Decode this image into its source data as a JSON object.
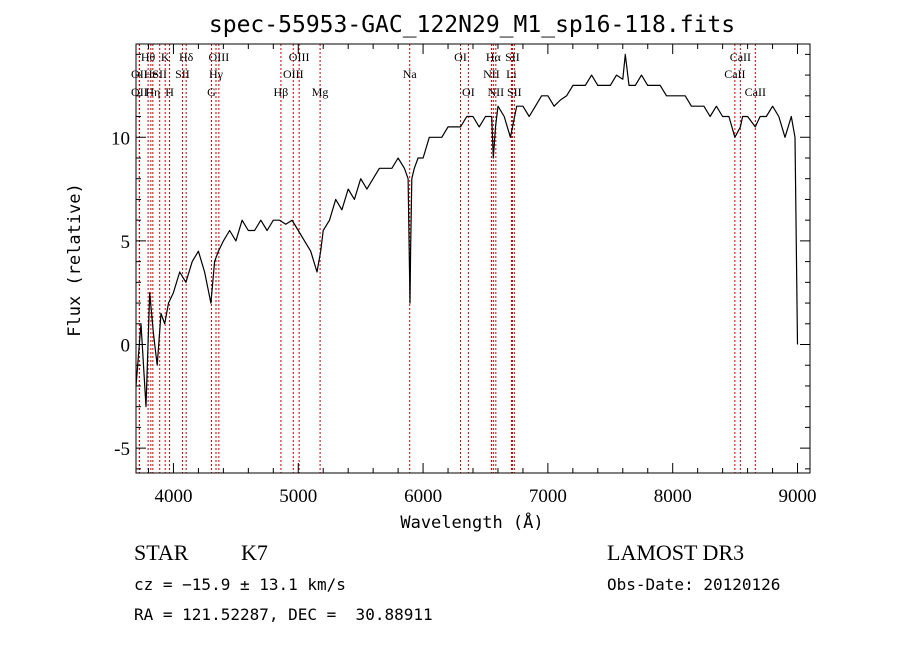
{
  "chart_data": {
    "type": "line",
    "title": "spec-55953-GAC_122N29_M1_sp16-118.fits",
    "xlabel": "Wavelength (Å)",
    "ylabel": "Flux (relative)",
    "xlim": [
      3700,
      9100
    ],
    "ylim": [
      -6.2,
      14.5
    ],
    "xticks": [
      4000,
      5000,
      6000,
      7000,
      8000,
      9000
    ],
    "yticks": [
      -5,
      0,
      5,
      10
    ],
    "grid": false,
    "series": [
      {
        "x": [
          3700,
          3740,
          3780,
          3810,
          3840,
          3870,
          3900,
          3930,
          3960,
          4000,
          4050,
          4100,
          4150,
          4200,
          4250,
          4300,
          4330,
          4360,
          4400,
          4450,
          4500,
          4550,
          4600,
          4650,
          4700,
          4750,
          4800,
          4850,
          4900,
          4950,
          5000,
          5050,
          5100,
          5150,
          5180,
          5200,
          5250,
          5300,
          5350,
          5400,
          5450,
          5500,
          5550,
          5600,
          5650,
          5700,
          5750,
          5800,
          5850,
          5880,
          5895,
          5900,
          5910,
          5930,
          5960,
          6000,
          6050,
          6100,
          6150,
          6200,
          6250,
          6300,
          6350,
          6400,
          6450,
          6500,
          6550,
          6563,
          6580,
          6600,
          6650,
          6700,
          6750,
          6800,
          6850,
          6900,
          6950,
          7000,
          7050,
          7100,
          7150,
          7200,
          7250,
          7300,
          7350,
          7400,
          7450,
          7500,
          7550,
          7600,
          7620,
          7650,
          7700,
          7750,
          7800,
          7850,
          7900,
          7950,
          8000,
          8050,
          8100,
          8150,
          8200,
          8250,
          8300,
          8350,
          8400,
          8450,
          8498,
          8542,
          8560,
          8600,
          8662,
          8700,
          8750,
          8800,
          8850,
          8900,
          8950,
          8980,
          9000
        ],
        "y": [
          -2.0,
          1.0,
          -3.0,
          2.5,
          0.5,
          -1.0,
          1.5,
          1.0,
          2.0,
          2.5,
          3.5,
          3.0,
          4.0,
          4.5,
          3.5,
          2.0,
          4.0,
          4.5,
          5.0,
          5.5,
          5.0,
          6.0,
          5.5,
          5.5,
          6.0,
          5.5,
          6.0,
          6.0,
          5.8,
          6.0,
          5.5,
          5.0,
          4.5,
          3.5,
          4.5,
          5.5,
          6.0,
          7.0,
          6.5,
          7.5,
          7.0,
          8.0,
          7.5,
          8.0,
          8.5,
          8.5,
          8.5,
          9.0,
          8.5,
          8.0,
          2.0,
          4.5,
          8.0,
          8.5,
          9.0,
          9.0,
          10.0,
          10.0,
          10.0,
          10.5,
          10.5,
          10.5,
          11.0,
          11.0,
          10.5,
          11.0,
          11.0,
          9.0,
          10.5,
          11.5,
          11.0,
          10.0,
          11.5,
          11.5,
          11.0,
          11.5,
          12.0,
          12.0,
          11.5,
          11.8,
          12.0,
          12.5,
          12.5,
          12.5,
          13.0,
          12.5,
          12.5,
          12.5,
          13.0,
          12.8,
          14.0,
          12.5,
          12.5,
          13.0,
          12.5,
          12.5,
          12.5,
          12.0,
          12.0,
          12.0,
          12.0,
          11.5,
          11.5,
          11.5,
          11.0,
          11.5,
          11.0,
          11.0,
          10.0,
          10.5,
          11.0,
          11.0,
          10.5,
          11.0,
          11.0,
          11.5,
          11.0,
          10.0,
          11.0,
          10.0,
          0.0
        ]
      }
    ],
    "spectral_lines": [
      {
        "name": "Hθ",
        "wavelength": 3797,
        "row": 1
      },
      {
        "name": "OII",
        "wavelength": 3727,
        "row": 2
      },
      {
        "name": "OII",
        "wavelength": 3727,
        "row": 3
      },
      {
        "name": "He",
        "wavelength": 3819,
        "row": 2
      },
      {
        "name": "Hη",
        "wavelength": 3835,
        "row": 3
      },
      {
        "name": "K",
        "wavelength": 3934,
        "row": 1
      },
      {
        "name": "SII",
        "wavelength": 3890,
        "row": 2
      },
      {
        "name": "H",
        "wavelength": 3969,
        "row": 3
      },
      {
        "name": "Hδ",
        "wavelength": 4102,
        "row": 1
      },
      {
        "name": "SII",
        "wavelength": 4072,
        "row": 2
      },
      {
        "name": "OIII",
        "wavelength": 4364,
        "row": 1
      },
      {
        "name": "Hγ",
        "wavelength": 4341,
        "row": 2
      },
      {
        "name": "G",
        "wavelength": 4305,
        "row": 3
      },
      {
        "name": "Hβ",
        "wavelength": 4861,
        "row": 3
      },
      {
        "name": "OIII",
        "wavelength": 5007,
        "row": 1
      },
      {
        "name": "OIII",
        "wavelength": 4960,
        "row": 2
      },
      {
        "name": "Mg",
        "wavelength": 5175,
        "row": 3
      },
      {
        "name": "Na",
        "wavelength": 5893,
        "row": 2
      },
      {
        "name": "OI",
        "wavelength": 6300,
        "row": 1
      },
      {
        "name": "OI",
        "wavelength": 6363,
        "row": 3
      },
      {
        "name": "Hα",
        "wavelength": 6563,
        "row": 1
      },
      {
        "name": "NII",
        "wavelength": 6548,
        "row": 2
      },
      {
        "name": "NII",
        "wavelength": 6583,
        "row": 3
      },
      {
        "name": "SII",
        "wavelength": 6716,
        "row": 1
      },
      {
        "name": "Li",
        "wavelength": 6708,
        "row": 2
      },
      {
        "name": "SII",
        "wavelength": 6731,
        "row": 3
      },
      {
        "name": "CaII",
        "wavelength": 8542,
        "row": 1
      },
      {
        "name": "CaII",
        "wavelength": 8498,
        "row": 2
      },
      {
        "name": "CaII",
        "wavelength": 8662,
        "row": 3
      }
    ],
    "colors": {
      "spectrum": "#000000",
      "line_markers": "#cc0000"
    }
  },
  "info": {
    "class_label": "STAR",
    "subclass": "K7",
    "survey": "LAMOST DR3",
    "cz": "cz = −15.9 ± 13.1 km/s",
    "obs_date": "Obs-Date: 20120126",
    "radec": "RA = 121.52287, DEC =  30.88911"
  }
}
